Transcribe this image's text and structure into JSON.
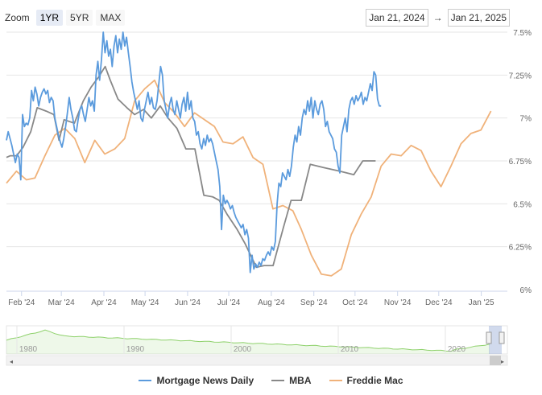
{
  "zoom": {
    "label": "Zoom",
    "buttons": [
      "1YR",
      "5YR",
      "MAX"
    ],
    "active": "1YR"
  },
  "range": {
    "from": "Jan 21, 2024",
    "arrow": "→",
    "to": "Jan 21, 2025"
  },
  "colors": {
    "mnd": "#5b9bdd",
    "mba": "#888888",
    "fm": "#f0b27a",
    "navigator": "#8ed16b"
  },
  "chart_data": {
    "type": "line",
    "x_ticks": [
      "Feb '24",
      "Mar '24",
      "Apr '24",
      "May '24",
      "Jun '24",
      "Jul '24",
      "Aug '24",
      "Sep '24",
      "Oct '24",
      "Nov '24",
      "Dec '24",
      "Jan '25"
    ],
    "y_ticks": [
      "6%",
      "6.25%",
      "6.5%",
      "6.75%",
      "7%",
      "7.25%",
      "7.5%"
    ],
    "ylim": [
      6.0,
      7.5
    ],
    "legend_position": "bottom",
    "series": [
      {
        "name": "Mortgage News Daily",
        "color": "#5b9bdd",
        "points": [
          [
            0,
            6.87
          ],
          [
            1,
            6.92
          ],
          [
            2,
            6.88
          ],
          [
            3,
            6.84
          ],
          [
            4,
            6.79
          ],
          [
            5,
            6.74
          ],
          [
            6,
            6.79
          ],
          [
            7,
            6.77
          ],
          [
            8,
            6.64
          ],
          [
            9,
            7.02
          ],
          [
            10,
            6.95
          ],
          [
            11,
            6.97
          ],
          [
            12,
            6.96
          ],
          [
            13,
            7.0
          ],
          [
            14,
            7.16
          ],
          [
            15,
            7.1
          ],
          [
            16,
            7.18
          ],
          [
            17,
            7.14
          ],
          [
            18,
            7.07
          ],
          [
            19,
            7.12
          ],
          [
            20,
            7.15
          ],
          [
            21,
            7.17
          ],
          [
            22,
            7.14
          ],
          [
            23,
            7.16
          ],
          [
            24,
            7.09
          ],
          [
            25,
            7.12
          ],
          [
            26,
            7.1
          ],
          [
            27,
            7.0
          ],
          [
            28,
            6.95
          ],
          [
            29,
            6.9
          ],
          [
            30,
            6.86
          ],
          [
            31,
            6.83
          ],
          [
            32,
            6.88
          ],
          [
            33,
            6.95
          ],
          [
            34,
            7.03
          ],
          [
            35,
            7.12
          ],
          [
            36,
            7.05
          ],
          [
            37,
            7.0
          ],
          [
            38,
            6.93
          ],
          [
            39,
            6.92
          ],
          [
            40,
            6.99
          ],
          [
            41,
            7.05
          ],
          [
            42,
            7.07
          ],
          [
            43,
            7.02
          ],
          [
            44,
            6.98
          ],
          [
            45,
            7.05
          ],
          [
            46,
            7.12
          ],
          [
            47,
            7.07
          ],
          [
            48,
            7.1
          ],
          [
            49,
            7.04
          ],
          [
            50,
            7.25
          ],
          [
            51,
            7.33
          ],
          [
            52,
            7.22
          ],
          [
            53,
            7.34
          ],
          [
            54,
            7.5
          ],
          [
            55,
            7.38
          ],
          [
            56,
            7.45
          ],
          [
            57,
            7.36
          ],
          [
            58,
            7.4
          ],
          [
            59,
            7.3
          ],
          [
            60,
            7.42
          ],
          [
            61,
            7.48
          ],
          [
            62,
            7.38
          ],
          [
            63,
            7.46
          ],
          [
            64,
            7.4
          ],
          [
            65,
            7.5
          ],
          [
            66,
            7.42
          ],
          [
            67,
            7.47
          ],
          [
            68,
            7.38
          ],
          [
            69,
            7.3
          ],
          [
            70,
            7.21
          ],
          [
            71,
            7.15
          ],
          [
            72,
            7.1
          ],
          [
            73,
            7.05
          ],
          [
            74,
            7.1
          ],
          [
            75,
            7.0
          ],
          [
            76,
            6.98
          ],
          [
            77,
            7.05
          ],
          [
            78,
            7.1
          ],
          [
            79,
            7.15
          ],
          [
            80,
            7.08
          ],
          [
            81,
            7.12
          ],
          [
            82,
            7.06
          ],
          [
            83,
            7.05
          ],
          [
            84,
            7.1
          ],
          [
            85,
            7.2
          ],
          [
            86,
            7.3
          ],
          [
            87,
            7.25
          ],
          [
            88,
            7.1
          ],
          [
            89,
            7.05
          ],
          [
            90,
            7.0
          ],
          [
            91,
            7.08
          ],
          [
            92,
            7.12
          ],
          [
            93,
            7.05
          ],
          [
            94,
            7.02
          ],
          [
            95,
            7.1
          ],
          [
            96,
            7.05
          ],
          [
            97,
            7.0
          ],
          [
            98,
            7.08
          ],
          [
            99,
            7.12
          ],
          [
            100,
            7.04
          ],
          [
            101,
            7.15
          ],
          [
            102,
            7.05
          ],
          [
            103,
            7.1
          ],
          [
            104,
            7.0
          ],
          [
            105,
            6.98
          ],
          [
            106,
            6.9
          ],
          [
            107,
            6.92
          ],
          [
            108,
            6.85
          ],
          [
            109,
            6.82
          ],
          [
            110,
            6.88
          ],
          [
            111,
            6.84
          ],
          [
            112,
            6.9
          ],
          [
            113,
            6.86
          ],
          [
            114,
            6.88
          ],
          [
            115,
            6.85
          ],
          [
            116,
            6.8
          ],
          [
            117,
            6.75
          ],
          [
            118,
            6.7
          ],
          [
            119,
            6.6
          ],
          [
            120,
            6.35
          ],
          [
            121,
            6.55
          ],
          [
            122,
            6.5
          ],
          [
            123,
            6.52
          ],
          [
            124,
            6.5
          ],
          [
            125,
            6.47
          ],
          [
            126,
            6.49
          ],
          [
            127,
            6.45
          ],
          [
            128,
            6.42
          ],
          [
            129,
            6.4
          ],
          [
            130,
            6.38
          ],
          [
            131,
            6.36
          ],
          [
            132,
            6.38
          ],
          [
            133,
            6.32
          ],
          [
            134,
            6.35
          ],
          [
            135,
            6.3
          ],
          [
            136,
            6.1
          ],
          [
            137,
            6.2
          ],
          [
            138,
            6.12
          ],
          [
            139,
            6.15
          ],
          [
            140,
            6.13
          ],
          [
            141,
            6.16
          ],
          [
            142,
            6.14
          ],
          [
            143,
            6.18
          ],
          [
            144,
            6.17
          ],
          [
            145,
            6.2
          ],
          [
            146,
            6.22
          ],
          [
            147,
            6.2
          ],
          [
            148,
            6.25
          ],
          [
            149,
            6.23
          ],
          [
            150,
            6.28
          ],
          [
            151,
            6.5
          ],
          [
            152,
            6.62
          ],
          [
            153,
            6.6
          ],
          [
            154,
            6.68
          ],
          [
            155,
            6.66
          ],
          [
            156,
            6.64
          ],
          [
            157,
            6.7
          ],
          [
            158,
            6.66
          ],
          [
            159,
            6.72
          ],
          [
            160,
            6.83
          ],
          [
            161,
            6.9
          ],
          [
            162,
            6.86
          ],
          [
            163,
            6.95
          ],
          [
            164,
            6.9
          ],
          [
            165,
            7.0
          ],
          [
            166,
            7.05
          ],
          [
            167,
            7.02
          ],
          [
            168,
            7.1
          ],
          [
            169,
            7.04
          ],
          [
            170,
            7.12
          ],
          [
            171,
            7.0
          ],
          [
            172,
            7.1
          ],
          [
            173,
            7.05
          ],
          [
            174,
            7.02
          ],
          [
            175,
            7.08
          ],
          [
            176,
            7.1
          ],
          [
            177,
            7.05
          ],
          [
            178,
            6.95
          ],
          [
            179,
            6.98
          ],
          [
            180,
            6.92
          ],
          [
            181,
            6.9
          ],
          [
            182,
            6.88
          ],
          [
            183,
            6.82
          ],
          [
            184,
            6.8
          ],
          [
            185,
            6.72
          ],
          [
            186,
            6.68
          ],
          [
            187,
            6.9
          ],
          [
            188,
            6.95
          ],
          [
            189,
            7.0
          ],
          [
            190,
            6.92
          ],
          [
            191,
            7.05
          ],
          [
            192,
            7.1
          ],
          [
            193,
            7.12
          ],
          [
            194,
            7.08
          ],
          [
            195,
            7.13
          ],
          [
            196,
            7.1
          ],
          [
            197,
            7.12
          ],
          [
            198,
            7.15
          ],
          [
            199,
            7.08
          ],
          [
            200,
            7.12
          ],
          [
            201,
            7.1
          ],
          [
            202,
            7.15
          ],
          [
            203,
            7.2
          ],
          [
            204,
            7.16
          ],
          [
            205,
            7.27
          ],
          [
            206,
            7.25
          ],
          [
            207,
            7.11
          ],
          [
            208,
            7.07
          ],
          [
            209,
            7.07
          ]
        ]
      },
      {
        "name": "MBA",
        "color": "#888888",
        "points": [
          [
            0,
            6.77
          ],
          [
            3,
            6.78
          ],
          [
            8,
            6.78
          ],
          [
            13,
            6.83
          ],
          [
            19,
            6.92
          ],
          [
            24,
            7.06
          ],
          [
            31,
            7.04
          ],
          [
            37,
            7.02
          ],
          [
            41,
            6.87
          ],
          [
            45,
            6.99
          ],
          [
            53,
            6.97
          ],
          [
            60,
            7.1
          ],
          [
            66,
            7.18
          ],
          [
            72,
            7.24
          ],
          [
            77,
            7.3
          ],
          [
            81,
            7.22
          ],
          [
            87,
            7.11
          ],
          [
            94,
            7.06
          ],
          [
            100,
            7.02
          ],
          [
            107,
            7.05
          ],
          [
            113,
            7.0
          ],
          [
            120,
            7.07
          ],
          [
            126,
            7.0
          ],
          [
            133,
            6.94
          ],
          [
            140,
            6.82
          ],
          [
            147,
            6.82
          ],
          [
            154,
            6.55
          ],
          [
            161,
            6.54
          ],
          [
            166,
            6.52
          ],
          [
            172,
            6.44
          ],
          [
            180,
            6.35
          ],
          [
            186,
            6.27
          ],
          [
            195,
            6.13
          ],
          [
            201,
            6.14
          ],
          [
            208,
            6.14
          ],
          [
            216,
            6.36
          ],
          [
            222,
            6.52
          ],
          [
            230,
            6.52
          ],
          [
            237,
            6.73
          ],
          [
            248,
            6.71
          ],
          [
            260,
            6.69
          ],
          [
            271,
            6.67
          ],
          [
            278,
            6.75
          ],
          [
            288,
            6.75
          ]
        ]
      },
      {
        "name": "Freddie Mac",
        "color": "#f0b27a",
        "points": [
          [
            0,
            6.62
          ],
          [
            7,
            6.69
          ],
          [
            14,
            6.64
          ],
          [
            20,
            6.65
          ],
          [
            27,
            6.78
          ],
          [
            34,
            6.9
          ],
          [
            41,
            6.94
          ],
          [
            48,
            6.88
          ],
          [
            55,
            6.74
          ],
          [
            62,
            6.87
          ],
          [
            69,
            6.79
          ],
          [
            76,
            6.82
          ],
          [
            83,
            6.88
          ],
          [
            90,
            7.1
          ],
          [
            97,
            7.17
          ],
          [
            104,
            7.22
          ],
          [
            111,
            7.09
          ],
          [
            118,
            7.03
          ],
          [
            125,
            6.95
          ],
          [
            132,
            7.03
          ],
          [
            139,
            6.99
          ],
          [
            146,
            6.95
          ],
          [
            152,
            6.86
          ],
          [
            159,
            6.85
          ],
          [
            166,
            6.89
          ],
          [
            173,
            6.77
          ],
          [
            180,
            6.73
          ],
          [
            187,
            6.47
          ],
          [
            194,
            6.49
          ],
          [
            201,
            6.46
          ],
          [
            207,
            6.35
          ],
          [
            214,
            6.2
          ],
          [
            221,
            6.09
          ],
          [
            228,
            6.08
          ],
          [
            235,
            6.12
          ],
          [
            242,
            6.32
          ],
          [
            249,
            6.44
          ],
          [
            256,
            6.54
          ],
          [
            263,
            6.72
          ],
          [
            270,
            6.79
          ],
          [
            277,
            6.78
          ],
          [
            284,
            6.84
          ],
          [
            291,
            6.81
          ],
          [
            298,
            6.69
          ],
          [
            305,
            6.6
          ],
          [
            312,
            6.72
          ],
          [
            319,
            6.85
          ],
          [
            326,
            6.91
          ],
          [
            333,
            6.93
          ],
          [
            340,
            7.04
          ]
        ]
      }
    ],
    "navigator": {
      "x_ticks": [
        "1980",
        "1990",
        "2000",
        "2010",
        "2020"
      ]
    }
  },
  "legend": [
    {
      "label": "Mortgage News Daily",
      "color": "#5b9bdd"
    },
    {
      "label": "MBA",
      "color": "#888888"
    },
    {
      "label": "Freddie Mac",
      "color": "#f0b27a"
    }
  ]
}
